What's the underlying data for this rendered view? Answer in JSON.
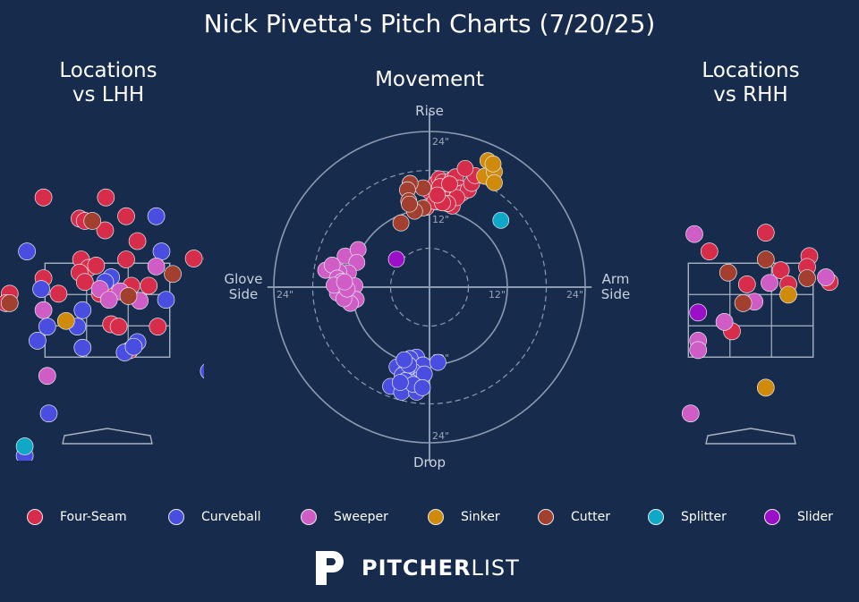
{
  "title": "Nick Pivetta's Pitch Charts (7/20/25)",
  "panels": {
    "lhh_title": "Locations\nvs LHH",
    "movement_title": "Movement",
    "rhh_title": "Locations\nvs RHH"
  },
  "movement_labels": {
    "rise": "Rise",
    "drop": "Drop",
    "glove": "Glove\nSide",
    "arm": "Arm\nSide",
    "ring_labels": [
      "12\"",
      "24\""
    ]
  },
  "colors": {
    "background": "#172b4d",
    "Four-Seam": "#d72d4a",
    "Curveball": "#4a4ee0",
    "Sweeper": "#d05cc6",
    "Sinker": "#d18b0c",
    "Cutter": "#a23f2f",
    "Splitter": "#10a8c8",
    "Slider": "#9b0fc9"
  },
  "legend": [
    "Four-Seam",
    "Curveball",
    "Sweeper",
    "Sinker",
    "Cutter",
    "Splitter",
    "Slider"
  ],
  "chart_data": [
    {
      "type": "scatter",
      "title": "Movement",
      "units": "inches",
      "x_axis": "horizontal break (negative = glove side, positive = arm side)",
      "y_axis": "induced vertical break (positive = rise, negative = drop)",
      "rings": [
        6,
        12,
        18,
        24
      ],
      "series": [
        {
          "name": "Four-Seam",
          "points": [
            [
              -0.5,
              12.3
            ],
            [
              0,
              14.8
            ],
            [
              1,
              16
            ],
            [
              1.5,
              16.7
            ],
            [
              2,
              16.2
            ],
            [
              2.5,
              15.5
            ],
            [
              3,
              15.8
            ],
            [
              3.5,
              16.6
            ],
            [
              4,
              17
            ],
            [
              4.5,
              15.3
            ],
            [
              5,
              14.5
            ],
            [
              6,
              15
            ],
            [
              6.5,
              16
            ],
            [
              7,
              17.2
            ],
            [
              1.6,
              15.5
            ],
            [
              2.5,
              13.5
            ],
            [
              3.5,
              12.5
            ],
            [
              0.8,
              13.2
            ],
            [
              5.5,
              18.3
            ],
            [
              4.2,
              13.8
            ],
            [
              2.8,
              12.9
            ],
            [
              3.1,
              15.9
            ],
            [
              2.0,
              13.0
            ],
            [
              1.2,
              14.2
            ]
          ]
        },
        {
          "name": "Curveball",
          "points": [
            [
              -2,
              -10.8
            ],
            [
              -4,
              -11.5
            ],
            [
              -3,
              -11
            ],
            [
              -5,
              -12.3
            ],
            [
              -1,
              -12
            ],
            [
              -2.5,
              -13
            ],
            [
              -3.5,
              -12.6
            ],
            [
              -4.2,
              -13.6
            ],
            [
              -1.5,
              -14.2
            ],
            [
              -3,
              -14.6
            ],
            [
              -0.8,
              -13.4
            ],
            [
              -6,
              -15.3
            ],
            [
              -4.3,
              -16.2
            ],
            [
              -2,
              -16.2
            ],
            [
              -3.7,
              -14.4
            ],
            [
              -2.5,
              -15
            ],
            [
              -1.1,
              -15.5
            ],
            [
              -3.2,
              -12
            ],
            [
              -4.5,
              -14.7
            ],
            [
              1.3,
              -11.6
            ],
            [
              -3.9,
              -11.2
            ]
          ]
        },
        {
          "name": "Sweeper",
          "points": [
            [
              -13,
              4.8
            ],
            [
              -11,
              5.8
            ],
            [
              -11.2,
              3.8
            ],
            [
              -12.5,
              2.2
            ],
            [
              -14,
              2.4
            ],
            [
              -16,
              2.6
            ],
            [
              -15,
              3.4
            ],
            [
              -14.2,
              1.4
            ],
            [
              -13.5,
              0.9
            ],
            [
              -14.2,
              -0.9
            ],
            [
              -12.6,
              -0.8
            ],
            [
              -11.5,
              0.2
            ],
            [
              -11.3,
              -1.9
            ],
            [
              -12.2,
              -2.5
            ],
            [
              -13.2,
              -1.8
            ],
            [
              -14.7,
              0.3
            ],
            [
              -12.7,
              -0.3
            ],
            [
              -13.1,
              0.8
            ]
          ]
        },
        {
          "name": "Sinker",
          "points": [
            [
              9,
              19.5
            ],
            [
              8.5,
              17.1
            ],
            [
              10,
              17.8
            ],
            [
              9.8,
              19
            ],
            [
              10,
              16.1
            ]
          ]
        },
        {
          "name": "Cutter",
          "points": [
            [
              -1,
              15.3
            ],
            [
              -3,
              16
            ],
            [
              -3.4,
              15
            ],
            [
              -1,
              12.2
            ],
            [
              -2.3,
              11.7
            ],
            [
              -4.4,
              9.9
            ],
            [
              -3.2,
              13.3
            ],
            [
              -3.1,
              12.8
            ]
          ]
        },
        {
          "name": "Splitter",
          "points": [
            [
              11,
              10.3
            ]
          ]
        },
        {
          "name": "Slider",
          "points": [
            [
              -5.1,
              4.3
            ]
          ]
        }
      ]
    },
    {
      "type": "scatter",
      "title": "Locations vs LHH",
      "units": "feet (catcher view)",
      "x_axis": "horizontal plate location",
      "y_axis": "height above ground",
      "strike_zone": {
        "x": [
          -0.83,
          0.83
        ],
        "y": [
          1.5,
          3.5
        ]
      },
      "series": [
        {
          "name": "Four-Seam",
          "points": [
            [
              -0.85,
              4.9
            ],
            [
              -0.02,
              4.9
            ],
            [
              -0.37,
              4.45
            ],
            [
              -0.3,
              4.4
            ],
            [
              0.25,
              4.5
            ],
            [
              -0.03,
              4.2
            ],
            [
              0.4,
              3.97
            ],
            [
              -0.35,
              3.58
            ],
            [
              -0.25,
              3.4
            ],
            [
              0.25,
              3.58
            ],
            [
              1.15,
              3.6
            ],
            [
              1.4,
              3.6
            ],
            [
              -0.37,
              3.3
            ],
            [
              -0.15,
              3.45
            ],
            [
              -0.85,
              3.18
            ],
            [
              -0.3,
              3.1
            ],
            [
              0.32,
              3.02
            ],
            [
              0.55,
              3.02
            ],
            [
              -0.05,
              2.9
            ],
            [
              -1.3,
              2.85
            ],
            [
              -0.65,
              2.85
            ],
            [
              -1.35,
              2.65
            ],
            [
              -0.1,
              2.85
            ],
            [
              0.05,
              2.2
            ],
            [
              0.15,
              2.15
            ],
            [
              0.67,
              2.15
            ],
            [
              0.3,
              1.65
            ]
          ]
        },
        {
          "name": "Curveball",
          "points": [
            [
              0.65,
              4.5
            ],
            [
              -1.07,
              3.75
            ],
            [
              0.72,
              3.75
            ],
            [
              0.05,
              3.2
            ],
            [
              -0.03,
              3.1
            ],
            [
              -0.88,
              2.95
            ],
            [
              0.78,
              2.72
            ],
            [
              -0.33,
              2.5
            ],
            [
              -0.8,
              2.15
            ],
            [
              -0.4,
              2.15
            ],
            [
              0.4,
              1.82
            ],
            [
              -0.93,
              1.85
            ],
            [
              -0.33,
              1.7
            ],
            [
              0.23,
              1.6
            ],
            [
              0.35,
              1.72
            ],
            [
              1.35,
              1.2
            ],
            [
              -0.78,
              0.3
            ],
            [
              -1.1,
              -0.6
            ]
          ]
        },
        {
          "name": "Sweeper",
          "points": [
            [
              0.65,
              3.43
            ],
            [
              -0.1,
              2.95
            ],
            [
              0.17,
              2.9
            ],
            [
              0.02,
              2.72
            ],
            [
              0.43,
              2.7
            ],
            [
              -0.85,
              2.5
            ],
            [
              -0.8,
              1.1
            ]
          ]
        },
        {
          "name": "Sinker",
          "points": [
            [
              -0.55,
              2.27
            ]
          ]
        },
        {
          "name": "Cutter",
          "points": [
            [
              -0.2,
              4.4
            ],
            [
              0.87,
              3.27
            ],
            [
              0.28,
              2.8
            ],
            [
              -1.3,
              2.65
            ]
          ]
        },
        {
          "name": "Splitter",
          "points": [
            [
              -1.1,
              -0.4
            ]
          ]
        }
      ]
    },
    {
      "type": "scatter",
      "title": "Locations vs RHH",
      "units": "feet (catcher view)",
      "x_axis": "horizontal plate location",
      "y_axis": "height above ground",
      "strike_zone": {
        "x": [
          -0.83,
          0.83
        ],
        "y": [
          1.5,
          3.5
        ]
      },
      "series": [
        {
          "name": "Four-Seam",
          "points": [
            [
              0.2,
              4.15
            ],
            [
              -0.55,
              3.75
            ],
            [
              0.78,
              3.65
            ],
            [
              0.4,
              3.35
            ],
            [
              0.75,
              3.42
            ],
            [
              -0.05,
              3.05
            ],
            [
              0.5,
              3.05
            ],
            [
              1.05,
              3.1
            ],
            [
              -0.25,
              2.05
            ]
          ]
        },
        {
          "name": "Curveball",
          "points": []
        },
        {
          "name": "Sweeper",
          "points": [
            [
              -0.75,
              4.12
            ],
            [
              1.0,
              3.2
            ],
            [
              0.25,
              3.08
            ],
            [
              0.05,
              2.68
            ],
            [
              -0.35,
              2.25
            ],
            [
              -0.7,
              1.85
            ],
            [
              -0.7,
              1.65
            ],
            [
              -0.8,
              0.3
            ]
          ]
        },
        {
          "name": "Sinker",
          "points": [
            [
              0.5,
              2.83
            ],
            [
              0.2,
              0.85
            ]
          ]
        },
        {
          "name": "Cutter",
          "points": [
            [
              0.2,
              3.58
            ],
            [
              -0.3,
              3.3
            ],
            [
              0.75,
              3.18
            ],
            [
              -0.1,
              2.65
            ]
          ]
        },
        {
          "name": "Slider",
          "points": [
            [
              -0.7,
              2.45
            ]
          ]
        }
      ]
    }
  ],
  "brand": {
    "bold": "PITCHER",
    "light": "LIST"
  }
}
